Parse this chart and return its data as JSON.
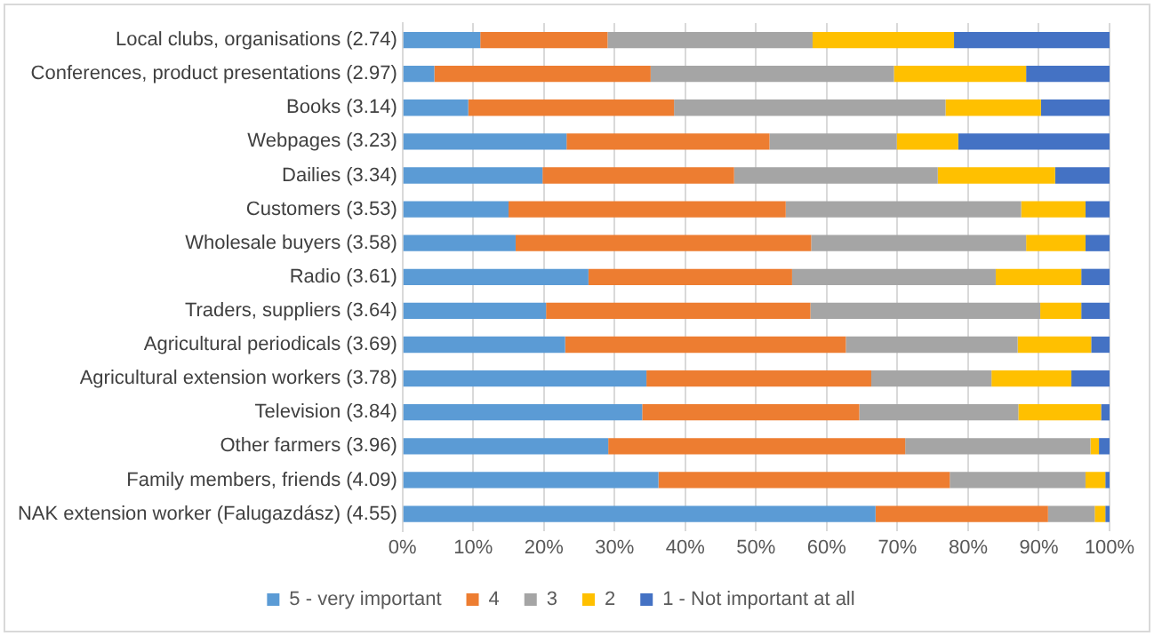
{
  "chart_data": {
    "type": "bar",
    "orientation": "horizontal",
    "stacked": true,
    "categories": [
      "Local clubs, organisations (2.74)",
      "Conferences, product presentations (2.97)",
      "Books (3.14)",
      "Webpages (3.23)",
      "Dailies (3.34)",
      "Customers (3.53)",
      "Wholesale buyers (3.58)",
      "Radio (3.61)",
      "Traders, suppliers (3.64)",
      "Agricultural periodicals (3.69)",
      "Agricultural extension workers (3.78)",
      "Television (3.84)",
      "Other farmers (3.96)",
      "Family members, friends (4.09)",
      "NAK extension worker (Falugazdász) (4.55)"
    ],
    "series": [
      {
        "name": "5 - very important",
        "color": "#5b9bd5",
        "values": [
          11,
          4.5,
          9.3,
          23.2,
          19.8,
          15,
          16,
          26.3,
          20.3,
          23,
          34.5,
          33.9,
          29.1,
          36.2,
          66.9
        ]
      },
      {
        "name": "4",
        "color": "#ed7d31",
        "values": [
          18,
          30.6,
          29.1,
          28.7,
          27.1,
          39.2,
          41.8,
          28.8,
          37.4,
          39.7,
          31.8,
          30.7,
          42,
          41.2,
          24.4
        ]
      },
      {
        "name": "3",
        "color": "#a5a5a5",
        "values": [
          29,
          34.4,
          38.4,
          18,
          28.8,
          33.3,
          30.4,
          28.8,
          32.5,
          24.3,
          17,
          22.5,
          26.2,
          19.2,
          6.6
        ]
      },
      {
        "name": "2",
        "color": "#ffc000",
        "values": [
          20,
          18.7,
          13.5,
          8.7,
          16.6,
          9.1,
          8.4,
          12.1,
          5.8,
          10.4,
          11.3,
          11.7,
          1.2,
          2.8,
          1.5
        ]
      },
      {
        "name": "1 - Not important at all",
        "color": "#4472c4",
        "values": [
          22,
          11.8,
          9.7,
          21.4,
          7.7,
          3.4,
          3.4,
          4,
          4,
          2.6,
          5.4,
          1.2,
          1.5,
          0.6,
          0.6
        ]
      }
    ],
    "xlim": [
      0,
      100
    ],
    "xticks": [
      {
        "value": 0,
        "label": "0%"
      },
      {
        "value": 10,
        "label": "10%"
      },
      {
        "value": 20,
        "label": "20%"
      },
      {
        "value": 30,
        "label": "30%"
      },
      {
        "value": 40,
        "label": "40%"
      },
      {
        "value": 50,
        "label": "50%"
      },
      {
        "value": 60,
        "label": "60%"
      },
      {
        "value": 70,
        "label": "70%"
      },
      {
        "value": 80,
        "label": "80%"
      },
      {
        "value": 90,
        "label": "90%"
      },
      {
        "value": 100,
        "label": "100%"
      }
    ],
    "grid": "x",
    "legend": "bottom"
  }
}
